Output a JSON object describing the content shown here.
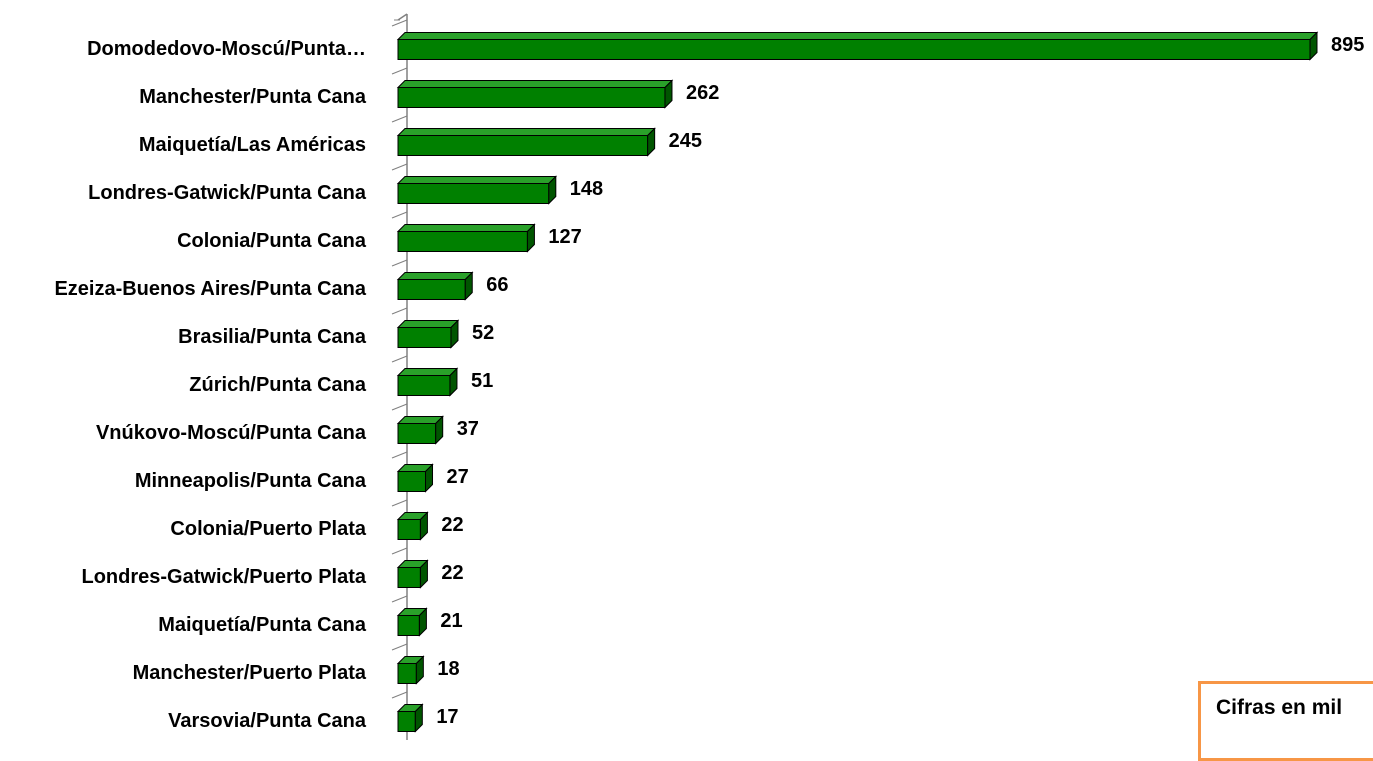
{
  "chart_data": {
    "type": "bar",
    "orientation": "horizontal",
    "style": "3d",
    "categories": [
      "Domodedovo-Moscú/Punta…",
      "Manchester/Punta Cana",
      "Maiquetía/Las Américas",
      "Londres-Gatwick/Punta Cana",
      "Colonia/Punta Cana",
      "Ezeiza-Buenos Aires/Punta Cana",
      "Brasilia/Punta Cana",
      "Zúrich/Punta Cana",
      "Vnúkovo-Moscú/Punta Cana",
      "Minneapolis/Punta Cana",
      "Colonia/Puerto Plata",
      "Londres-Gatwick/Puerto Plata",
      "Maiquetía/Punta Cana",
      "Manchester/Puerto Plata",
      "Varsovia/Punta Cana"
    ],
    "values": [
      895,
      262,
      245,
      148,
      127,
      66,
      52,
      51,
      37,
      27,
      22,
      22,
      21,
      18,
      17
    ],
    "data_labels": [
      "895",
      "262",
      "245",
      "148",
      "127",
      "66",
      "52",
      "51",
      "37",
      "27",
      "22",
      "22",
      "21",
      "18",
      "17"
    ],
    "xlim": [
      0,
      895
    ],
    "grid": false,
    "legend": "none",
    "colors": {
      "bar_front": "#008000",
      "bar_top": "#2aa12a",
      "bar_side": "#005500",
      "bar_outline": "#000000",
      "axis": "#808080"
    }
  },
  "note": {
    "text": "Cifras en mil",
    "border_color": "#f79646"
  }
}
